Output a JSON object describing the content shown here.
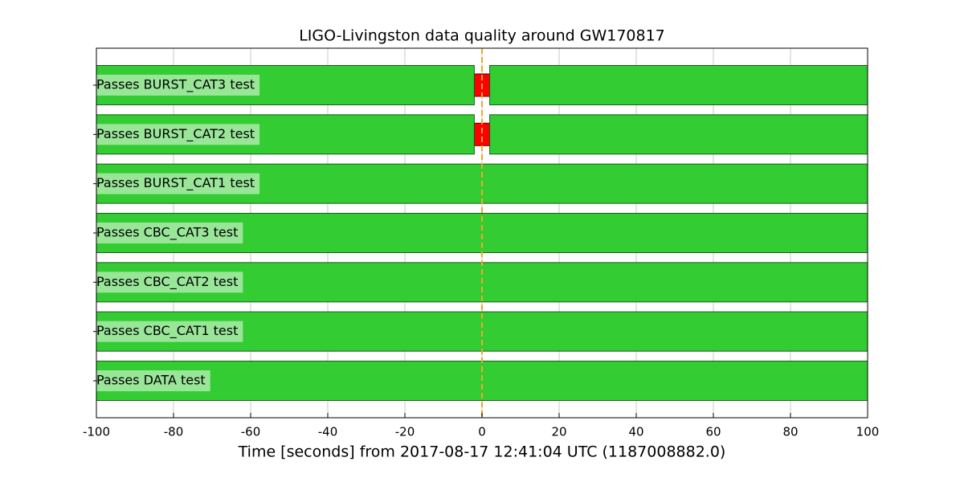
{
  "chart_data": {
    "type": "segments",
    "title": "LIGO-Livingston data quality around GW170817",
    "xlabel": "Time [seconds] from 2017-08-17 12:41:04 UTC (1187008882.0)",
    "xlim": [
      -100,
      100
    ],
    "xticks": [
      -100,
      -80,
      -60,
      -40,
      -20,
      0,
      20,
      40,
      60,
      80,
      100
    ],
    "grid": true,
    "active_color": "#33cc33",
    "inactive_color": "#ff0000",
    "event_time": 0,
    "event_color": "#f5a623",
    "rows": [
      {
        "label": "Passes BURST_CAT3 test",
        "active": [
          [
            -100,
            -2
          ],
          [
            2,
            100
          ]
        ],
        "inactive": [
          [
            -2,
            2
          ]
        ]
      },
      {
        "label": "Passes BURST_CAT2 test",
        "active": [
          [
            -100,
            -2
          ],
          [
            2,
            100
          ]
        ],
        "inactive": [
          [
            -2,
            2
          ]
        ]
      },
      {
        "label": "Passes BURST_CAT1 test",
        "active": [
          [
            -100,
            100
          ]
        ],
        "inactive": []
      },
      {
        "label": "Passes CBC_CAT3 test",
        "active": [
          [
            -100,
            100
          ]
        ],
        "inactive": []
      },
      {
        "label": "Passes CBC_CAT2 test",
        "active": [
          [
            -100,
            100
          ]
        ],
        "inactive": []
      },
      {
        "label": "Passes CBC_CAT1 test",
        "active": [
          [
            -100,
            100
          ]
        ],
        "inactive": []
      },
      {
        "label": "Passes DATA test",
        "active": [
          [
            -100,
            100
          ]
        ],
        "inactive": []
      }
    ]
  }
}
